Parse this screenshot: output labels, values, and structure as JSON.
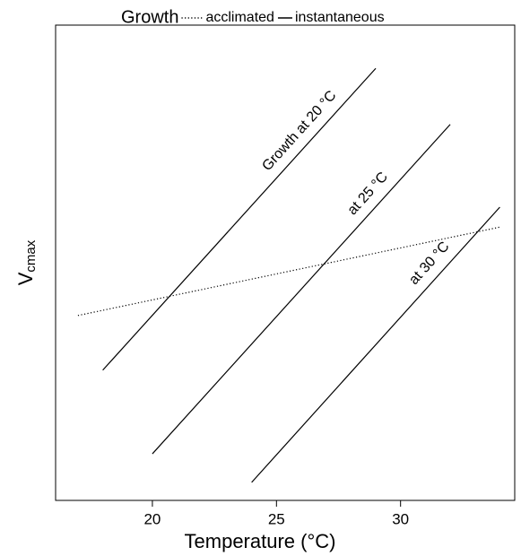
{
  "chart_data": {
    "type": "line",
    "legend": {
      "title": "Growth",
      "entries": [
        {
          "name": "acclimated",
          "style": "dotted"
        },
        {
          "name": "instantaneous",
          "style": "solid"
        }
      ]
    },
    "xlabel": "Temperature (°C)",
    "ylabel": {
      "main": "V",
      "sub": "cmax"
    },
    "xlim": [
      16.1,
      34.6
    ],
    "xticks": [
      20,
      25,
      30
    ],
    "ylim": [
      0,
      100
    ],
    "color": "#000000",
    "series": [
      {
        "style": "dotted",
        "x": [
          17.0,
          34.0
        ],
        "values": [
          38.9,
          57.5
        ]
      },
      {
        "style": "solid",
        "label": "Growth at 20 °C",
        "x": [
          18.0,
          29.0
        ],
        "values": [
          27.4,
          90.9
        ]
      },
      {
        "style": "solid",
        "label": "at 25 °C",
        "x": [
          20.0,
          32.0
        ],
        "values": [
          9.8,
          79.1
        ]
      },
      {
        "style": "solid",
        "label": "at 30 °C",
        "x": [
          24.0,
          34.0
        ],
        "values": [
          3.8,
          61.7
        ]
      }
    ]
  }
}
